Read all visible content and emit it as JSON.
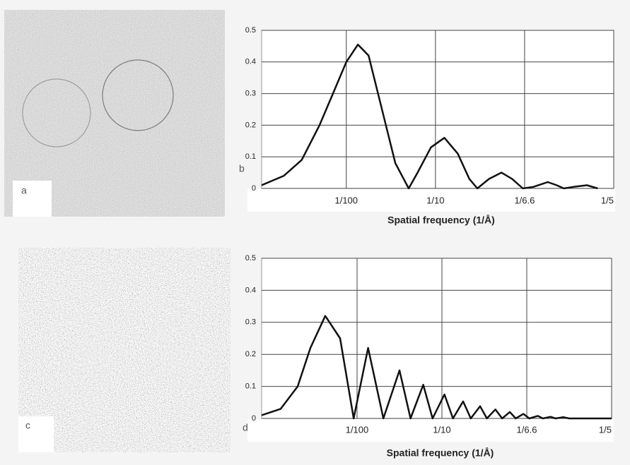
{
  "images": [
    {
      "label": "a"
    },
    {
      "label": "c"
    }
  ],
  "chart_data": [
    {
      "type": "line",
      "panel_label": "b",
      "x_label": "Spatial frequency (1/Å)",
      "xlim": [
        0.05,
        4
      ],
      "xticks": [
        {
          "value": 1,
          "label": "1/100"
        },
        {
          "value": 2,
          "label": "1/10"
        },
        {
          "value": 3,
          "label": "1/6.6"
        },
        {
          "value": 4,
          "label": "1/5"
        }
      ],
      "ylim": [
        0,
        0.5
      ],
      "yticks": [
        0,
        0.1,
        0.2,
        0.3,
        0.4,
        0.5
      ],
      "grid": true,
      "x": [
        0.05,
        0.3,
        0.5,
        0.7,
        0.85,
        1.0,
        1.13,
        1.25,
        1.4,
        1.55,
        1.7,
        1.8,
        1.95,
        2.1,
        2.25,
        2.38,
        2.47,
        2.6,
        2.74,
        2.86,
        2.98,
        3.1,
        3.26,
        3.36,
        3.44,
        3.55,
        3.7,
        3.82
      ],
      "series": [
        {
          "color": "#111111",
          "values": [
            0.01,
            0.04,
            0.09,
            0.2,
            0.3,
            0.4,
            0.455,
            0.42,
            0.25,
            0.08,
            0,
            0.05,
            0.13,
            0.16,
            0.11,
            0.03,
            0,
            0.03,
            0.05,
            0.03,
            0,
            0.005,
            0.02,
            0.01,
            0,
            0.005,
            0.01,
            0
          ]
        }
      ]
    },
    {
      "type": "line",
      "panel_label": "d",
      "x_label": "Spatial frequency (1/Å)",
      "xlim": [
        -0.125,
        4
      ],
      "xticks": [
        {
          "value": 1,
          "label": "1/100"
        },
        {
          "value": 2,
          "label": "1/10"
        },
        {
          "value": 3,
          "label": "1/6.6"
        },
        {
          "value": 4,
          "label": "1/5"
        }
      ],
      "ylim": [
        0,
        0.5
      ],
      "yticks": [
        0,
        0.1,
        0.2,
        0.3,
        0.4,
        0.5
      ],
      "grid": true,
      "x": [
        -0.125,
        0.1,
        0.3,
        0.45,
        0.625,
        0.8,
        0.96,
        1.13,
        1.31,
        1.5,
        1.63,
        1.78,
        1.89,
        2.03,
        2.13,
        2.25,
        2.34,
        2.45,
        2.53,
        2.63,
        2.71,
        2.8,
        2.87,
        2.96,
        3.03,
        3.13,
        3.19,
        3.28,
        3.34,
        3.43,
        3.5,
        4.0
      ],
      "series": [
        {
          "color": "#111111",
          "values": [
            0.01,
            0.03,
            0.1,
            0.22,
            0.32,
            0.25,
            0,
            0.22,
            0,
            0.15,
            0,
            0.105,
            0,
            0.075,
            0,
            0.053,
            0,
            0.038,
            0,
            0.028,
            0,
            0.02,
            0,
            0.014,
            0,
            0.008,
            0,
            0.005,
            0,
            0.004,
            0,
            0
          ]
        }
      ]
    }
  ]
}
